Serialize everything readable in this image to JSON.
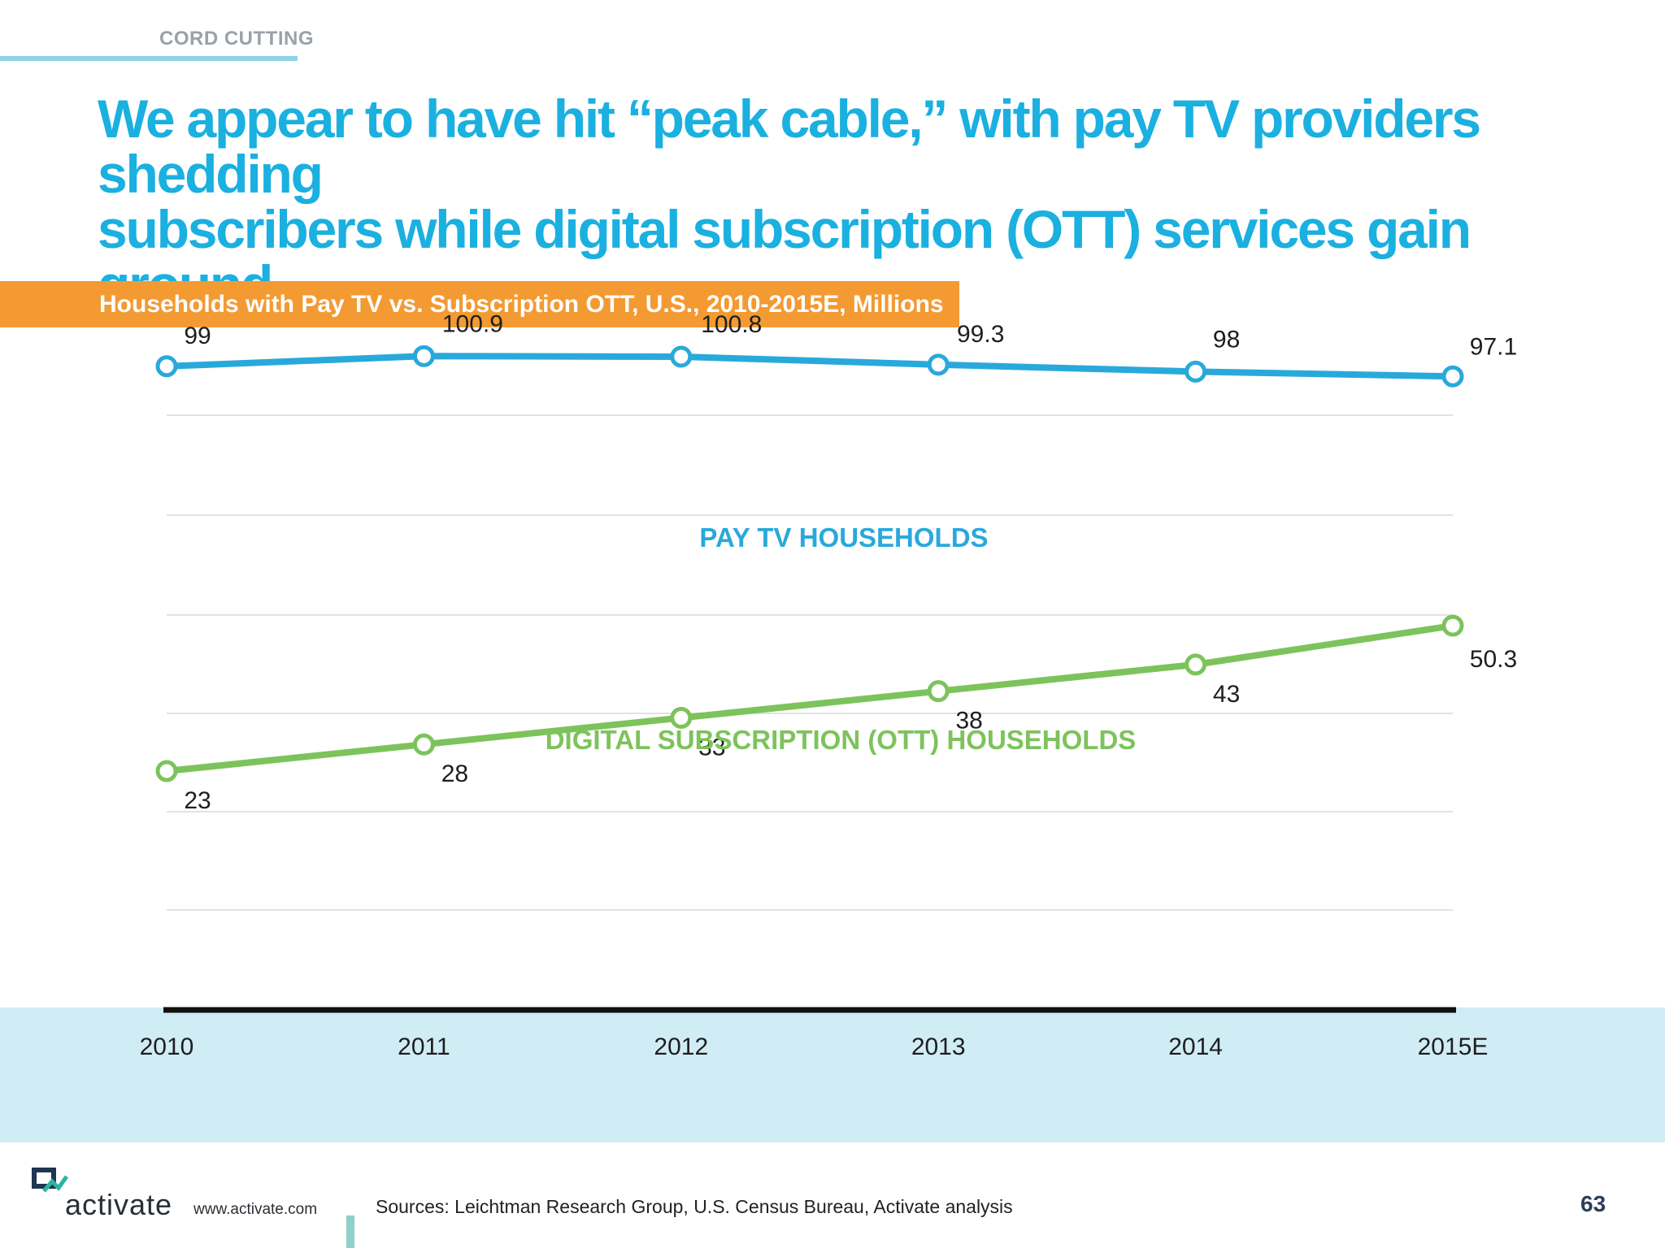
{
  "header": {
    "section": "CORD CUTTING",
    "headline_line1": "We appear to have hit “peak cable,” with pay TV providers shedding",
    "headline_line2": "subscribers while digital subscription (OTT) services gain ground"
  },
  "chart_data": {
    "type": "line",
    "title": "Households with Pay TV vs. Subscription OTT, U.S., 2010-2015E, Millions",
    "categories": [
      "2010",
      "2011",
      "2012",
      "2013",
      "2014",
      "2015E"
    ],
    "series": [
      {
        "name": "PAY TV HOUSEHOLDS",
        "values": [
          99,
          100.9,
          100.8,
          99.3,
          98,
          97.1
        ],
        "labels": [
          "99",
          "100.9",
          "100.8",
          "99.3",
          "98",
          "97.1"
        ],
        "color": "#29a9db"
      },
      {
        "name": "DIGITAL SUBSCRIPTION (OTT) HOUSEHOLDS",
        "values": [
          23,
          28,
          33,
          38,
          43,
          50.3
        ],
        "labels": [
          "23",
          "28",
          "33",
          "38",
          "43",
          "50.3"
        ],
        "color": "#7dc35b"
      }
    ],
    "ylim": [
      0,
      120
    ],
    "grid": true,
    "xlabel": "",
    "ylabel": ""
  },
  "footer": {
    "brand": "activate",
    "url": "www.activate.com",
    "sources": "Sources: Leichtman Research Group, U.S. Census Bureau, Activate analysis",
    "page_number": "63",
    "logo_icon": "activate-logo-icon"
  }
}
